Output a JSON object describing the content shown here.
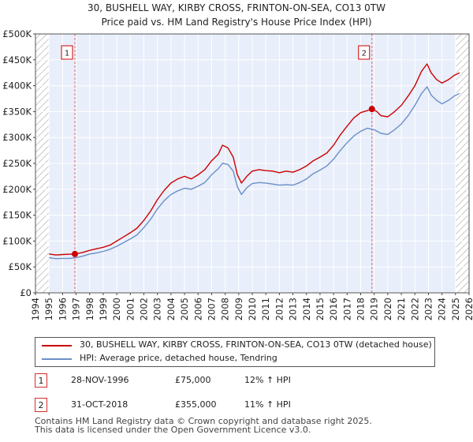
{
  "chart_data": {
    "type": "line",
    "title": "30, BUSHELL WAY, KIRBY CROSS, FRINTON-ON-SEA, CO13 0TW",
    "subtitle": "Price paid vs. HM Land Registry's House Price Index (HPI)",
    "xlim": [
      1994,
      2026
    ],
    "ylim": [
      0,
      500000
    ],
    "x_ticks": [
      "1994",
      "1995",
      "1996",
      "1997",
      "1998",
      "1999",
      "2000",
      "2001",
      "2002",
      "2003",
      "2004",
      "2005",
      "2006",
      "2007",
      "2008",
      "2009",
      "2010",
      "2011",
      "2012",
      "2013",
      "2014",
      "2015",
      "2016",
      "2017",
      "2018",
      "2019",
      "2020",
      "2021",
      "2022",
      "2023",
      "2024",
      "2025",
      "2026"
    ],
    "y_ticks": [
      {
        "value": 0,
        "label": "£0"
      },
      {
        "value": 50000,
        "label": "£50K"
      },
      {
        "value": 100000,
        "label": "£100K"
      },
      {
        "value": 150000,
        "label": "£150K"
      },
      {
        "value": 200000,
        "label": "£200K"
      },
      {
        "value": 250000,
        "label": "£250K"
      },
      {
        "value": 300000,
        "label": "£300K"
      },
      {
        "value": 350000,
        "label": "£350K"
      },
      {
        "value": 400000,
        "label": "£400K"
      },
      {
        "value": 450000,
        "label": "£450K"
      },
      {
        "value": 500000,
        "label": "£500K"
      }
    ],
    "series": [
      {
        "name": "30, BUSHELL WAY, KIRBY CROSS, FRINTON-ON-SEA, CO13 0TW (detached house)",
        "color": "#cc0000",
        "points": [
          [
            1995.0,
            75000
          ],
          [
            1995.5,
            73000
          ],
          [
            1996.0,
            74000
          ],
          [
            1996.5,
            74500
          ],
          [
            1996.91,
            75000
          ],
          [
            1997.5,
            78000
          ],
          [
            1998.0,
            82000
          ],
          [
            1998.5,
            85000
          ],
          [
            1999.0,
            88000
          ],
          [
            1999.5,
            92000
          ],
          [
            2000.0,
            100000
          ],
          [
            2000.5,
            108000
          ],
          [
            2001.0,
            116000
          ],
          [
            2001.5,
            125000
          ],
          [
            2002.0,
            140000
          ],
          [
            2002.5,
            158000
          ],
          [
            2003.0,
            180000
          ],
          [
            2003.5,
            198000
          ],
          [
            2004.0,
            212000
          ],
          [
            2004.5,
            220000
          ],
          [
            2005.0,
            225000
          ],
          [
            2005.5,
            220000
          ],
          [
            2006.0,
            228000
          ],
          [
            2006.5,
            238000
          ],
          [
            2007.0,
            255000
          ],
          [
            2007.5,
            268000
          ],
          [
            2007.8,
            285000
          ],
          [
            2008.2,
            280000
          ],
          [
            2008.6,
            262000
          ],
          [
            2008.9,
            228000
          ],
          [
            2009.2,
            212000
          ],
          [
            2009.6,
            225000
          ],
          [
            2010.0,
            235000
          ],
          [
            2010.5,
            238000
          ],
          [
            2011.0,
            236000
          ],
          [
            2011.5,
            235000
          ],
          [
            2012.0,
            232000
          ],
          [
            2012.5,
            235000
          ],
          [
            2013.0,
            233000
          ],
          [
            2013.5,
            238000
          ],
          [
            2014.0,
            245000
          ],
          [
            2014.5,
            255000
          ],
          [
            2015.0,
            262000
          ],
          [
            2015.5,
            270000
          ],
          [
            2016.0,
            285000
          ],
          [
            2016.5,
            305000
          ],
          [
            2017.0,
            322000
          ],
          [
            2017.5,
            338000
          ],
          [
            2018.0,
            348000
          ],
          [
            2018.5,
            352000
          ],
          [
            2018.83,
            355000
          ],
          [
            2019.2,
            350000
          ],
          [
            2019.5,
            342000
          ],
          [
            2020.0,
            340000
          ],
          [
            2020.5,
            350000
          ],
          [
            2021.0,
            362000
          ],
          [
            2021.5,
            380000
          ],
          [
            2022.0,
            400000
          ],
          [
            2022.5,
            428000
          ],
          [
            2022.9,
            442000
          ],
          [
            2023.2,
            425000
          ],
          [
            2023.6,
            412000
          ],
          [
            2024.0,
            405000
          ],
          [
            2024.5,
            412000
          ],
          [
            2024.9,
            420000
          ],
          [
            2025.3,
            425000
          ]
        ]
      },
      {
        "name": "HPI: Average price, detached house, Tendring",
        "color": "#6a8fc7",
        "points": [
          [
            1995.0,
            68000
          ],
          [
            1995.5,
            66000
          ],
          [
            1996.0,
            66500
          ],
          [
            1996.5,
            66500
          ],
          [
            1997.0,
            68000
          ],
          [
            1997.5,
            71000
          ],
          [
            1998.0,
            75000
          ],
          [
            1998.5,
            77000
          ],
          [
            1999.0,
            80000
          ],
          [
            1999.5,
            84000
          ],
          [
            2000.0,
            90000
          ],
          [
            2000.5,
            97000
          ],
          [
            2001.0,
            104000
          ],
          [
            2001.5,
            112000
          ],
          [
            2002.0,
            126000
          ],
          [
            2002.5,
            142000
          ],
          [
            2003.0,
            162000
          ],
          [
            2003.5,
            178000
          ],
          [
            2004.0,
            190000
          ],
          [
            2004.5,
            197000
          ],
          [
            2005.0,
            202000
          ],
          [
            2005.5,
            200000
          ],
          [
            2006.0,
            206000
          ],
          [
            2006.5,
            213000
          ],
          [
            2007.0,
            228000
          ],
          [
            2007.5,
            240000
          ],
          [
            2007.8,
            250000
          ],
          [
            2008.2,
            248000
          ],
          [
            2008.6,
            235000
          ],
          [
            2008.9,
            205000
          ],
          [
            2009.2,
            190000
          ],
          [
            2009.6,
            203000
          ],
          [
            2010.0,
            211000
          ],
          [
            2010.5,
            213000
          ],
          [
            2011.0,
            212000
          ],
          [
            2011.5,
            210000
          ],
          [
            2012.0,
            208000
          ],
          [
            2012.5,
            209000
          ],
          [
            2013.0,
            208000
          ],
          [
            2013.5,
            213000
          ],
          [
            2014.0,
            220000
          ],
          [
            2014.5,
            230000
          ],
          [
            2015.0,
            237000
          ],
          [
            2015.5,
            245000
          ],
          [
            2016.0,
            258000
          ],
          [
            2016.5,
            275000
          ],
          [
            2017.0,
            290000
          ],
          [
            2017.5,
            303000
          ],
          [
            2018.0,
            312000
          ],
          [
            2018.5,
            318000
          ],
          [
            2019.0,
            315000
          ],
          [
            2019.5,
            308000
          ],
          [
            2020.0,
            306000
          ],
          [
            2020.5,
            315000
          ],
          [
            2021.0,
            326000
          ],
          [
            2021.5,
            342000
          ],
          [
            2022.0,
            362000
          ],
          [
            2022.5,
            385000
          ],
          [
            2022.9,
            398000
          ],
          [
            2023.2,
            382000
          ],
          [
            2023.6,
            372000
          ],
          [
            2024.0,
            365000
          ],
          [
            2024.5,
            372000
          ],
          [
            2024.9,
            380000
          ],
          [
            2025.3,
            385000
          ]
        ]
      }
    ],
    "annotations": [
      {
        "label": "1",
        "x": 1996.91,
        "y": 75000
      },
      {
        "label": "2",
        "x": 2018.83,
        "y": 355000
      }
    ],
    "grid": true,
    "shading": {
      "color": "#e8eefa"
    },
    "hatch_regions": [
      [
        1994,
        1995
      ],
      [
        2025.0,
        2026
      ]
    ],
    "legend": [
      {
        "label": "30, BUSHELL WAY, KIRBY CROSS, FRINTON-ON-SEA, CO13 0TW (detached house)",
        "color": "#cc0000"
      },
      {
        "label": "HPI: Average price, detached house, Tendring",
        "color": "#6a8fc7"
      }
    ]
  },
  "sales": [
    {
      "marker": "1",
      "date": "28-NOV-1996",
      "price": "£75,000",
      "hpi": "12% ↑ HPI"
    },
    {
      "marker": "2",
      "date": "31-OCT-2018",
      "price": "£355,000",
      "hpi": "11% ↑ HPI"
    }
  ],
  "footer": {
    "line1": "Contains HM Land Registry data © Crown copyright and database right 2025.",
    "line2": "This data is licensed under the Open Government Licence v3.0."
  }
}
